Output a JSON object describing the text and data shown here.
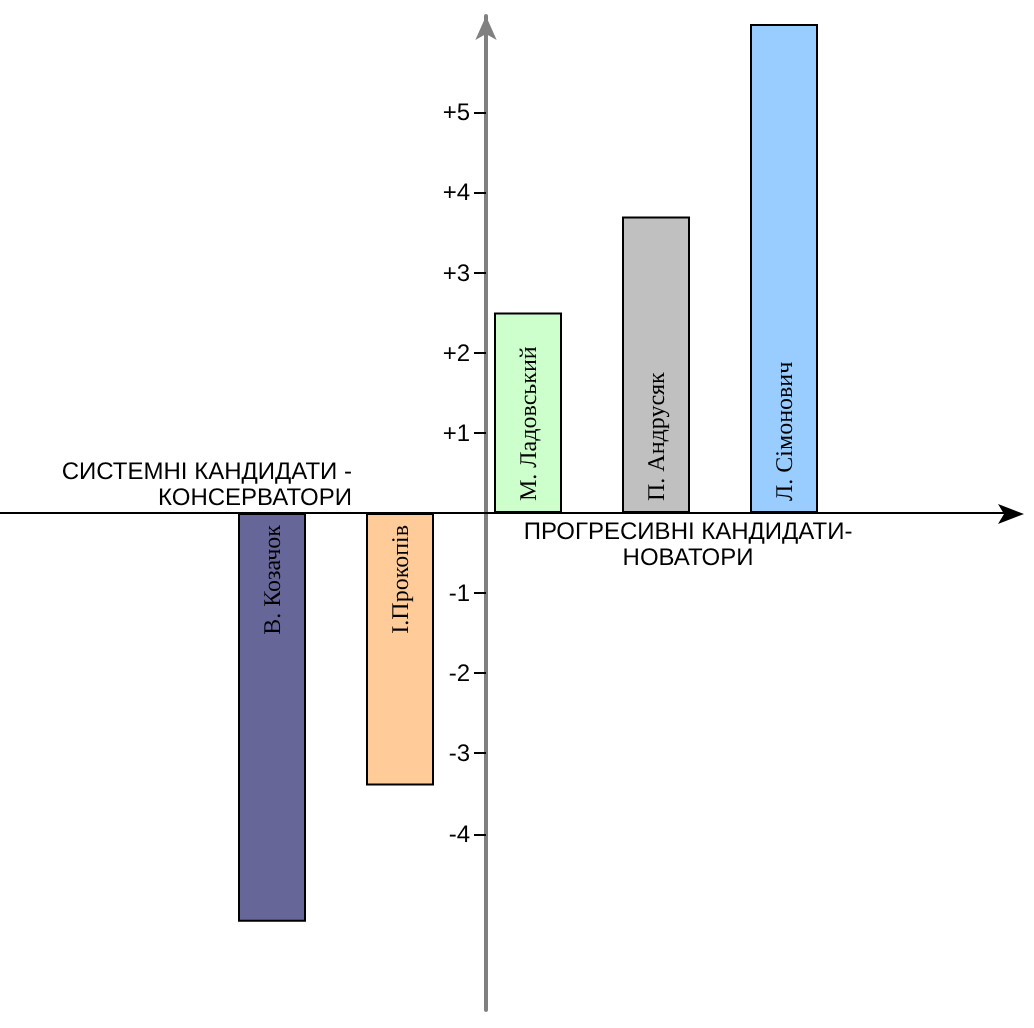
{
  "chart_data": {
    "type": "bar",
    "categories": [
      "В. Козачок",
      "І.Прокопів",
      "М. Ладовський",
      "П. Андрусяк",
      "Л. Сімонович"
    ],
    "values": [
      -5.1,
      -3.4,
      2.5,
      3.7,
      6.1
    ],
    "colors": [
      "#666699",
      "#ffcc99",
      "#ccffcc",
      "#c0c0c0",
      "#99ccff"
    ],
    "ylim": [
      -6.2,
      6.2
    ],
    "yticks": [
      -4,
      -3,
      -2,
      -1,
      {
        "value": 1,
        "label": "+1"
      },
      {
        "value": 2,
        "label": "+2"
      },
      {
        "value": 3,
        "label": "+3"
      },
      {
        "value": 4,
        "label": "+4"
      },
      {
        "value": 5,
        "label": "+5"
      }
    ],
    "annotations": [
      "СИСТЕМНІ КАНДИДАТИ - КОНСЕРВАТОРИ",
      "ПРОГРЕСИВНІ КАНДИДАТИ-НОВАТОРИ"
    ]
  }
}
